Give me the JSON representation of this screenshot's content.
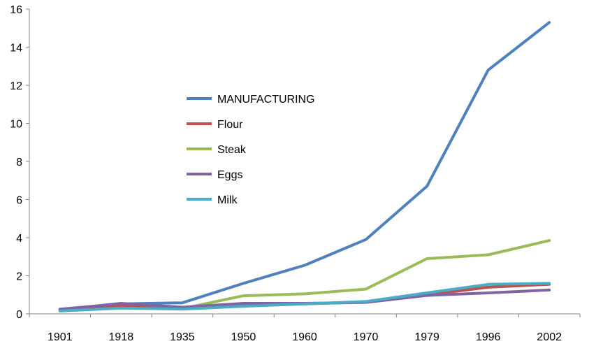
{
  "chart_data": {
    "type": "line",
    "categories": [
      "1901",
      "1918",
      "1935",
      "1950",
      "1960",
      "1970",
      "1979",
      "1996",
      "2002"
    ],
    "ylim": [
      0,
      16
    ],
    "yticks": [
      "0",
      "2",
      "4",
      "6",
      "8",
      "10",
      "12",
      "14",
      "16"
    ],
    "grid": false,
    "legend_position": "center-left",
    "series": [
      {
        "name": "MANUFACTURING",
        "color": "#4F81BD",
        "values": [
          0.25,
          0.52,
          0.58,
          1.6,
          2.55,
          3.9,
          6.7,
          12.8,
          15.3
        ]
      },
      {
        "name": "Flour",
        "color": "#C0504D",
        "values": [
          0.2,
          0.42,
          0.3,
          0.45,
          0.52,
          0.62,
          1.0,
          1.4,
          1.55
        ]
      },
      {
        "name": "Steak",
        "color": "#9BBB59",
        "values": [
          0.2,
          0.38,
          0.28,
          0.95,
          1.05,
          1.3,
          2.9,
          3.1,
          3.85
        ]
      },
      {
        "name": "Eggs",
        "color": "#8064A2",
        "values": [
          0.22,
          0.55,
          0.35,
          0.55,
          0.55,
          0.6,
          0.97,
          1.1,
          1.25
        ]
      },
      {
        "name": "Milk",
        "color": "#4BACC6",
        "values": [
          0.15,
          0.3,
          0.25,
          0.4,
          0.52,
          0.65,
          1.1,
          1.55,
          1.6
        ]
      }
    ]
  }
}
